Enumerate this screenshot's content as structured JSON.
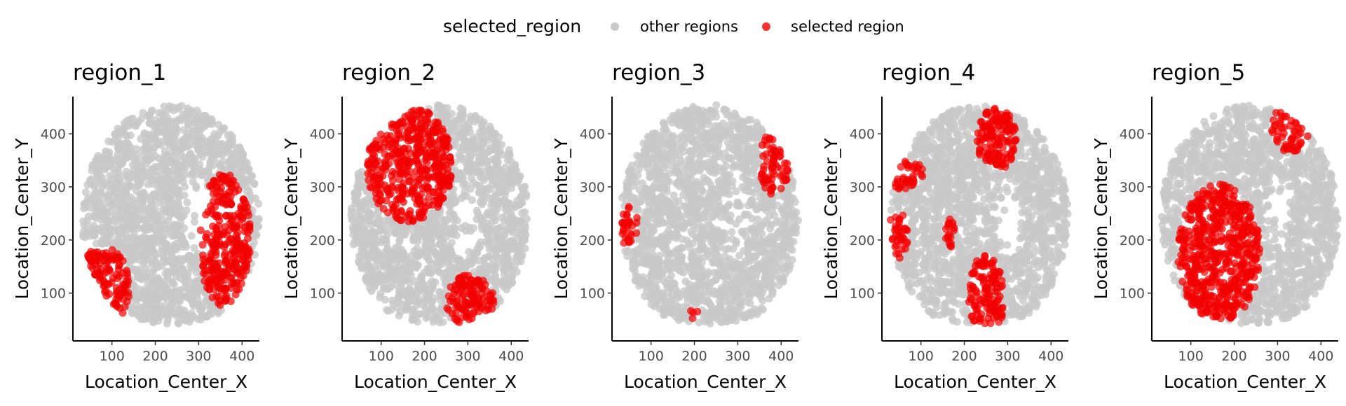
{
  "legend": {
    "title": "selected_region",
    "items": [
      {
        "label": "other regions",
        "color": "#c8c8c8"
      },
      {
        "label": "selected region",
        "color": "#f20000"
      }
    ],
    "placement": "top-center"
  },
  "chart_data": [
    {
      "type": "scatter",
      "title": "region_1",
      "xlabel": "Location_Center_X",
      "ylabel": "Location_Center_Y",
      "xlim": [
        10,
        440
      ],
      "ylim": [
        10,
        470
      ],
      "xticks": [
        100,
        200,
        300,
        400
      ],
      "yticks": [
        100,
        200,
        300,
        400
      ],
      "selected_areas": [
        {
          "shape": "ellipse",
          "cx": 360,
          "cy": 200,
          "rx": 60,
          "ry": 125
        },
        {
          "shape": "ellipse",
          "cx": 80,
          "cy": 110,
          "rx": 60,
          "ry": 80
        }
      ]
    },
    {
      "type": "scatter",
      "title": "region_2",
      "xlabel": "Location_Center_X",
      "ylabel": "Location_Center_Y",
      "xlim": [
        10,
        440
      ],
      "ylim": [
        10,
        470
      ],
      "xticks": [
        100,
        200,
        300,
        400
      ],
      "yticks": [
        100,
        200,
        300,
        400
      ],
      "selected_areas": [
        {
          "shape": "ellipse",
          "cx": 165,
          "cy": 345,
          "rx": 100,
          "ry": 110
        },
        {
          "shape": "ellipse",
          "cx": 305,
          "cy": 85,
          "rx": 55,
          "ry": 50
        }
      ]
    },
    {
      "type": "scatter",
      "title": "region_3",
      "xlabel": "Location_Center_X",
      "ylabel": "Location_Center_Y",
      "xlim": [
        10,
        440
      ],
      "ylim": [
        10,
        470
      ],
      "xticks": [
        100,
        200,
        300,
        400
      ],
      "yticks": [
        100,
        200,
        300,
        400
      ],
      "selected_areas": [
        {
          "shape": "ellipse",
          "cx": 385,
          "cy": 345,
          "rx": 35,
          "ry": 60
        },
        {
          "shape": "ellipse",
          "cx": 45,
          "cy": 225,
          "rx": 25,
          "ry": 40
        },
        {
          "shape": "ellipse",
          "cx": 200,
          "cy": 60,
          "rx": 10,
          "ry": 12
        }
      ]
    },
    {
      "type": "scatter",
      "title": "region_4",
      "xlabel": "Location_Center_X",
      "ylabel": "Location_Center_Y",
      "xlim": [
        10,
        440
      ],
      "ylim": [
        10,
        470
      ],
      "xticks": [
        100,
        200,
        300,
        400
      ],
      "yticks": [
        100,
        200,
        300,
        400
      ],
      "selected_areas": [
        {
          "shape": "ellipse",
          "cx": 60,
          "cy": 325,
          "rx": 45,
          "ry": 30
        },
        {
          "shape": "ellipse",
          "cx": 45,
          "cy": 210,
          "rx": 25,
          "ry": 45
        },
        {
          "shape": "ellipse",
          "cx": 250,
          "cy": 90,
          "rx": 40,
          "ry": 85
        },
        {
          "shape": "ellipse",
          "cx": 275,
          "cy": 390,
          "rx": 45,
          "ry": 60
        },
        {
          "shape": "ellipse",
          "cx": 165,
          "cy": 215,
          "rx": 12,
          "ry": 30
        }
      ]
    },
    {
      "type": "scatter",
      "title": "region_5",
      "xlabel": "Location_Center_X",
      "ylabel": "Location_Center_Y",
      "xlim": [
        10,
        440
      ],
      "ylim": [
        10,
        470
      ],
      "xticks": [
        100,
        200,
        300,
        400
      ],
      "yticks": [
        100,
        200,
        300,
        400
      ],
      "selected_areas": [
        {
          "shape": "ellipse",
          "cx": 165,
          "cy": 175,
          "rx": 95,
          "ry": 130
        },
        {
          "shape": "ellipse",
          "cx": 330,
          "cy": 410,
          "rx": 45,
          "ry": 45
        }
      ]
    }
  ]
}
